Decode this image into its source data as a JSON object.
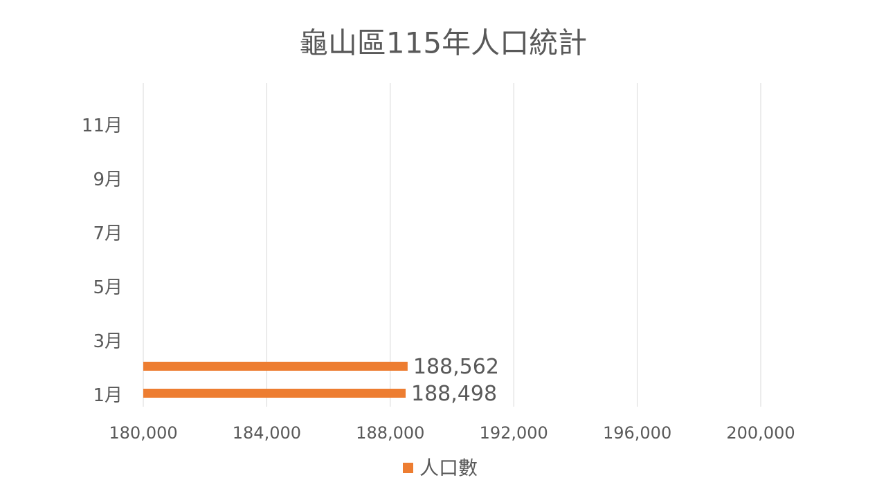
{
  "chart_data": {
    "type": "bar",
    "orientation": "horizontal",
    "title": "龜山區115年人口統計",
    "categories": [
      "1月",
      null,
      "3月",
      null,
      "5月",
      null,
      "7月",
      null,
      "9月",
      null,
      "11月",
      null
    ],
    "series": [
      {
        "name": "人口數",
        "color": "#ed7d31",
        "values": [
          188498,
          188562,
          null,
          null,
          null,
          null,
          null,
          null,
          null,
          null,
          null,
          null
        ],
        "value_labels": [
          "188,498",
          "188,562",
          null,
          null,
          null,
          null,
          null,
          null,
          null,
          null,
          null,
          null
        ]
      }
    ],
    "xlim": [
      180000,
      200000
    ],
    "xticks": [
      {
        "value": 180000,
        "label": "180,000"
      },
      {
        "value": 184000,
        "label": "184,000"
      },
      {
        "value": 188000,
        "label": "188,000"
      },
      {
        "value": 192000,
        "label": "192,000"
      },
      {
        "value": 196000,
        "label": "196,000"
      },
      {
        "value": 200000,
        "label": "200,000"
      }
    ],
    "grid": true,
    "legend": "bottom"
  }
}
